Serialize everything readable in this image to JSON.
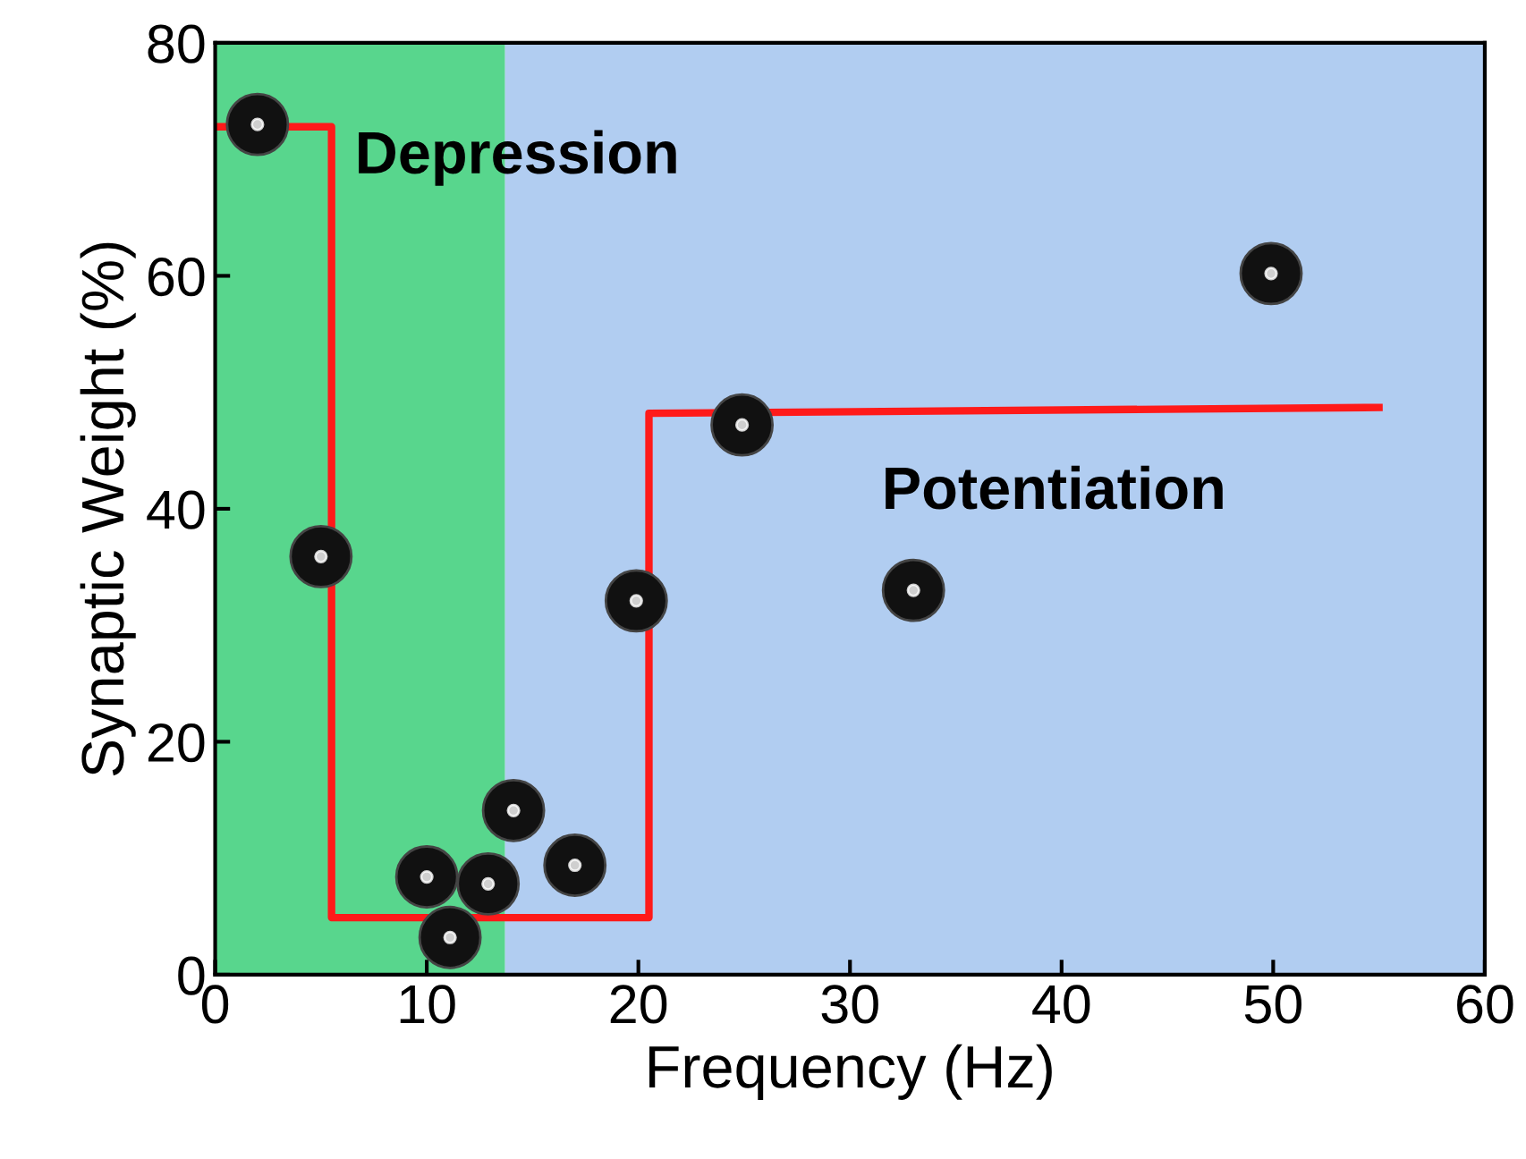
{
  "chart_data": {
    "type": "scatter",
    "xlabel": "Frequency (Hz)",
    "ylabel": "Synaptic Weight (%)",
    "xlim": [
      0,
      60
    ],
    "ylim": [
      0,
      80
    ],
    "xticks": [
      0,
      10,
      20,
      30,
      40,
      50,
      60
    ],
    "yticks": [
      0,
      20,
      40,
      60,
      80
    ],
    "grid": false,
    "legend": false,
    "series": [
      {
        "type": "line",
        "color": "#ff1a1a",
        "line_style": "solid",
        "x": [
          0,
          5.5,
          5.5,
          20.5,
          20.5,
          55
        ],
        "values": [
          72.8,
          72.8,
          4.9,
          4.9,
          48.2,
          48.7
        ]
      },
      {
        "marker": "circle",
        "color": "#111111",
        "x": [
          2.0,
          5.0,
          10.0,
          11.1,
          12.9,
          14.1,
          17.0,
          19.9,
          24.9,
          33.0,
          49.9
        ],
        "values": [
          73.0,
          35.9,
          8.4,
          3.2,
          7.8,
          14.1,
          9.4,
          32.1,
          47.2,
          33.0,
          60.2
        ]
      }
    ],
    "bands": [
      {
        "axis": "x",
        "from": 0,
        "to": 13.7,
        "color": "#2ecc71"
      },
      {
        "axis": "x",
        "from": 13.7,
        "to": 60,
        "color": "#9dc0ee"
      }
    ],
    "annotations": [
      "Depression",
      "Potentiation"
    ]
  }
}
